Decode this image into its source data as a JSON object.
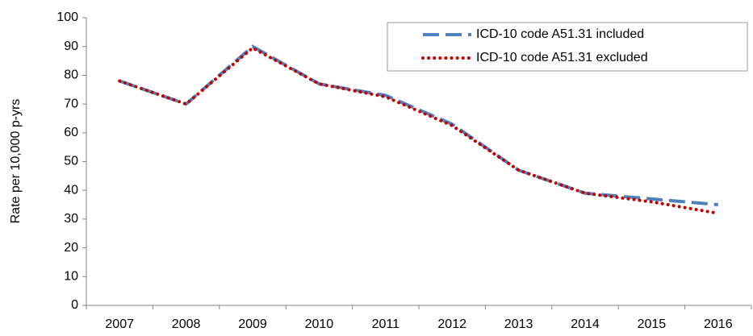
{
  "chart_data": {
    "type": "line",
    "y_label": "Rate per 10,000 p-yrs",
    "categories": [
      "2007",
      "2008",
      "2009",
      "2010",
      "2011",
      "2012",
      "2013",
      "2014",
      "2015",
      "2016"
    ],
    "series": [
      {
        "name": "ICD-10 code A51.31 included",
        "color": "#4f81bd",
        "dash": "dashed",
        "values": [
          78,
          70,
          90,
          77,
          73,
          63,
          47,
          39,
          37,
          35
        ]
      },
      {
        "name": "ICD-10 code A51.31 excluded",
        "color": "#c00000",
        "dash": "dotted",
        "values": [
          78,
          70,
          89.5,
          77,
          72.5,
          62.5,
          47,
          39,
          36,
          32
        ]
      }
    ],
    "ylim": [
      0,
      100
    ],
    "yticks": [
      0,
      10,
      20,
      30,
      40,
      50,
      60,
      70,
      80,
      90,
      100
    ],
    "grid": false,
    "legend": "upper right"
  }
}
